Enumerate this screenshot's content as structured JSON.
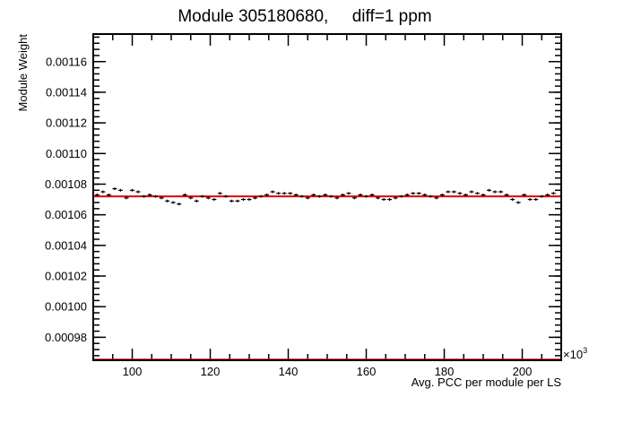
{
  "chart_data": {
    "type": "scatter",
    "title": "Module 305180680,     diff=1 ppm",
    "xlabel": "Avg. PCC per module per LS",
    "ylabel": "Module Weight",
    "x_multiplier_label": "×10",
    "x_multiplier_exponent": "3",
    "xlim": [
      90,
      210
    ],
    "ylim": [
      0.000965,
      0.001178
    ],
    "xticks": [
      100,
      120,
      140,
      160,
      180,
      200
    ],
    "xtick_labels": [
      "100",
      "120",
      "140",
      "160",
      "180",
      "200"
    ],
    "yticks": [
      0.00098,
      0.001,
      0.00102,
      0.00104,
      0.00106,
      0.00108,
      0.0011,
      0.00112,
      0.00114,
      0.00116
    ],
    "ytick_labels": [
      "0.00098",
      "0.00100",
      "0.00102",
      "0.00104",
      "0.00106",
      "0.00108",
      "0.00110",
      "0.00112",
      "0.00114",
      "0.00116"
    ],
    "fit_line": {
      "y": 0.001072,
      "color": "#e00000"
    },
    "points_color": "#000000",
    "points": [
      {
        "x": 91,
        "y": 0.001073
      },
      {
        "x": 92.5,
        "y": 0.001075
      },
      {
        "x": 94,
        "y": 0.001073
      },
      {
        "x": 95.5,
        "y": 0.001077
      },
      {
        "x": 97,
        "y": 0.001076
      },
      {
        "x": 98.5,
        "y": 0.001071
      },
      {
        "x": 100,
        "y": 0.001076
      },
      {
        "x": 101.5,
        "y": 0.001075
      },
      {
        "x": 103,
        "y": 0.001072
      },
      {
        "x": 104.5,
        "y": 0.001073
      },
      {
        "x": 106,
        "y": 0.001072
      },
      {
        "x": 107.5,
        "y": 0.001071
      },
      {
        "x": 109,
        "y": 0.001069
      },
      {
        "x": 110.5,
        "y": 0.001068
      },
      {
        "x": 112,
        "y": 0.001067
      },
      {
        "x": 113.5,
        "y": 0.001073
      },
      {
        "x": 115,
        "y": 0.001071
      },
      {
        "x": 116.5,
        "y": 0.001069
      },
      {
        "x": 118,
        "y": 0.001072
      },
      {
        "x": 119.5,
        "y": 0.001071
      },
      {
        "x": 121,
        "y": 0.00107
      },
      {
        "x": 122.5,
        "y": 0.001074
      },
      {
        "x": 124,
        "y": 0.001072
      },
      {
        "x": 125.5,
        "y": 0.001069
      },
      {
        "x": 127,
        "y": 0.001069
      },
      {
        "x": 128.5,
        "y": 0.00107
      },
      {
        "x": 130,
        "y": 0.00107
      },
      {
        "x": 131.5,
        "y": 0.001071
      },
      {
        "x": 133,
        "y": 0.001072
      },
      {
        "x": 134.5,
        "y": 0.001073
      },
      {
        "x": 136,
        "y": 0.001075
      },
      {
        "x": 137.5,
        "y": 0.001074
      },
      {
        "x": 139,
        "y": 0.001074
      },
      {
        "x": 140.5,
        "y": 0.001074
      },
      {
        "x": 142,
        "y": 0.001073
      },
      {
        "x": 143.5,
        "y": 0.001072
      },
      {
        "x": 145,
        "y": 0.001071
      },
      {
        "x": 146.5,
        "y": 0.001073
      },
      {
        "x": 148,
        "y": 0.001072
      },
      {
        "x": 149.5,
        "y": 0.001073
      },
      {
        "x": 151,
        "y": 0.001072
      },
      {
        "x": 152.5,
        "y": 0.001071
      },
      {
        "x": 154,
        "y": 0.001073
      },
      {
        "x": 155.5,
        "y": 0.001074
      },
      {
        "x": 157,
        "y": 0.001071
      },
      {
        "x": 158.5,
        "y": 0.001073
      },
      {
        "x": 160,
        "y": 0.001072
      },
      {
        "x": 161.5,
        "y": 0.001073
      },
      {
        "x": 163,
        "y": 0.001071
      },
      {
        "x": 164.5,
        "y": 0.00107
      },
      {
        "x": 166,
        "y": 0.00107
      },
      {
        "x": 167.5,
        "y": 0.001071
      },
      {
        "x": 169,
        "y": 0.001072
      },
      {
        "x": 170.5,
        "y": 0.001073
      },
      {
        "x": 172,
        "y": 0.001074
      },
      {
        "x": 173.5,
        "y": 0.001074
      },
      {
        "x": 175,
        "y": 0.001073
      },
      {
        "x": 176.5,
        "y": 0.001072
      },
      {
        "x": 178,
        "y": 0.001071
      },
      {
        "x": 179.5,
        "y": 0.001073
      },
      {
        "x": 181,
        "y": 0.001075
      },
      {
        "x": 182.5,
        "y": 0.001075
      },
      {
        "x": 184,
        "y": 0.001074
      },
      {
        "x": 185.5,
        "y": 0.001073
      },
      {
        "x": 187,
        "y": 0.001075
      },
      {
        "x": 188.5,
        "y": 0.001074
      },
      {
        "x": 190,
        "y": 0.001073
      },
      {
        "x": 191.5,
        "y": 0.001076
      },
      {
        "x": 193,
        "y": 0.001075
      },
      {
        "x": 194.5,
        "y": 0.001075
      },
      {
        "x": 196,
        "y": 0.001073
      },
      {
        "x": 197.5,
        "y": 0.00107
      },
      {
        "x": 199,
        "y": 0.001068
      },
      {
        "x": 200.5,
        "y": 0.001073
      },
      {
        "x": 202,
        "y": 0.00107
      },
      {
        "x": 203.5,
        "y": 0.00107
      },
      {
        "x": 205,
        "y": 0.001072
      },
      {
        "x": 206.5,
        "y": 0.001073
      },
      {
        "x": 208,
        "y": 0.001074
      }
    ]
  }
}
